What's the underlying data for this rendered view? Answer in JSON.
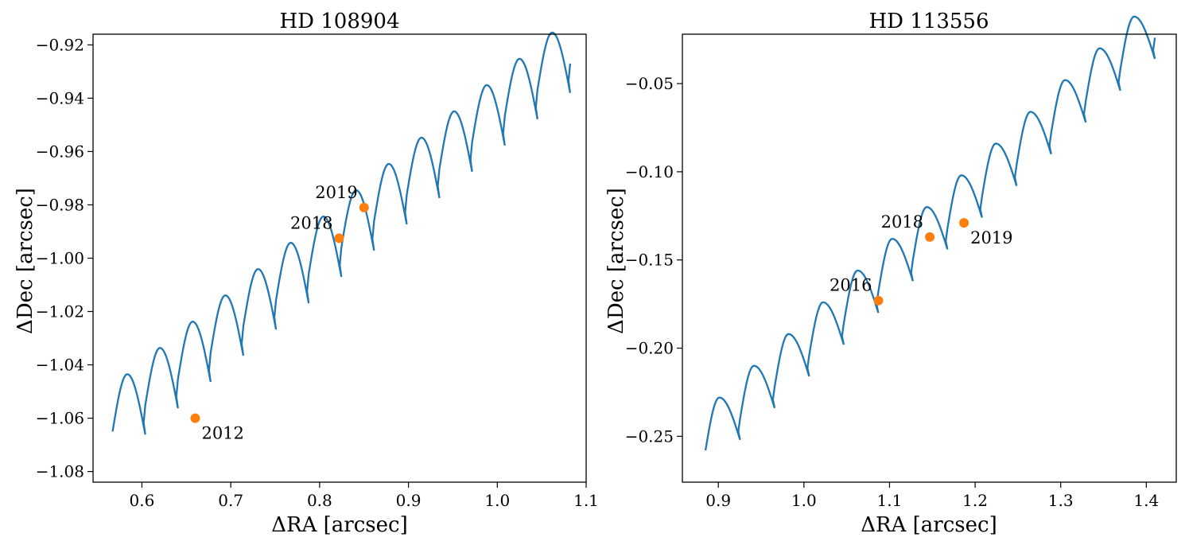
{
  "chart_data": [
    {
      "type": "line",
      "title": "HD 108904",
      "xlabel": "ΔRA [arcsec]",
      "ylabel": "ΔDec [arcsec]",
      "xlim": [
        0.545,
        1.1
      ],
      "ylim": [
        -1.084,
        -0.916
      ],
      "xticks": [
        0.6,
        0.7,
        0.8,
        0.9,
        1.0,
        1.1
      ],
      "xtick_labels": [
        "0.6",
        "0.7",
        "0.8",
        "0.9",
        "1.0",
        "1.1"
      ],
      "yticks": [
        -1.08,
        -1.06,
        -1.04,
        -1.02,
        -1.0,
        -0.98,
        -0.96,
        -0.94,
        -0.92
      ],
      "ytick_labels": [
        "−1.08",
        "−1.06",
        "−1.04",
        "−1.02",
        "−1.00",
        "−0.98",
        "−0.96",
        "−0.94",
        "−0.92"
      ],
      "track": {
        "name": "orbit track",
        "color": "#1f77b4",
        "start": [
          0.567,
          -1.065
        ],
        "end": [
          1.082,
          -0.927
        ],
        "loops": 14,
        "loop_height": 0.0215,
        "loop_drop": 0.011,
        "apex_frac": 0.45
      },
      "points": [
        {
          "label": "2012",
          "x": 0.66,
          "y": -1.06,
          "label_pos": "below-right"
        },
        {
          "label": "2018",
          "x": 0.822,
          "y": -0.9925,
          "label_pos": "upper-left"
        },
        {
          "label": "2019",
          "x": 0.85,
          "y": -0.981,
          "label_pos": "upper-left"
        }
      ],
      "point_color": "#ff7f0e"
    },
    {
      "type": "line",
      "title": "HD 113556",
      "xlabel": "ΔRA [arcsec]",
      "ylabel": "ΔDec [arcsec]",
      "xlim": [
        0.858,
        1.435
      ],
      "ylim": [
        -0.276,
        -0.022
      ],
      "xticks": [
        0.9,
        1.0,
        1.1,
        1.2,
        1.3,
        1.4
      ],
      "xtick_labels": [
        "0.9",
        "1.0",
        "1.1",
        "1.2",
        "1.3",
        "1.4"
      ],
      "yticks": [
        -0.25,
        -0.2,
        -0.15,
        -0.1,
        -0.05
      ],
      "ytick_labels": [
        "−0.25",
        "−0.20",
        "−0.15",
        "−0.10",
        "−0.05"
      ],
      "track": {
        "name": "orbit track",
        "color": "#1f77b4",
        "start": [
          0.885,
          -0.258
        ],
        "end": [
          1.41,
          -0.024
        ],
        "loops": 13,
        "loop_height": 0.03,
        "loop_drop": 0.012,
        "apex_frac": 0.4
      },
      "points": [
        {
          "label": "2016",
          "x": 1.087,
          "y": -0.173,
          "label_pos": "upper-left"
        },
        {
          "label": "2018",
          "x": 1.147,
          "y": -0.137,
          "label_pos": "upper-left"
        },
        {
          "label": "2019",
          "x": 1.187,
          "y": -0.129,
          "label_pos": "below-right"
        }
      ],
      "point_color": "#ff7f0e"
    }
  ]
}
